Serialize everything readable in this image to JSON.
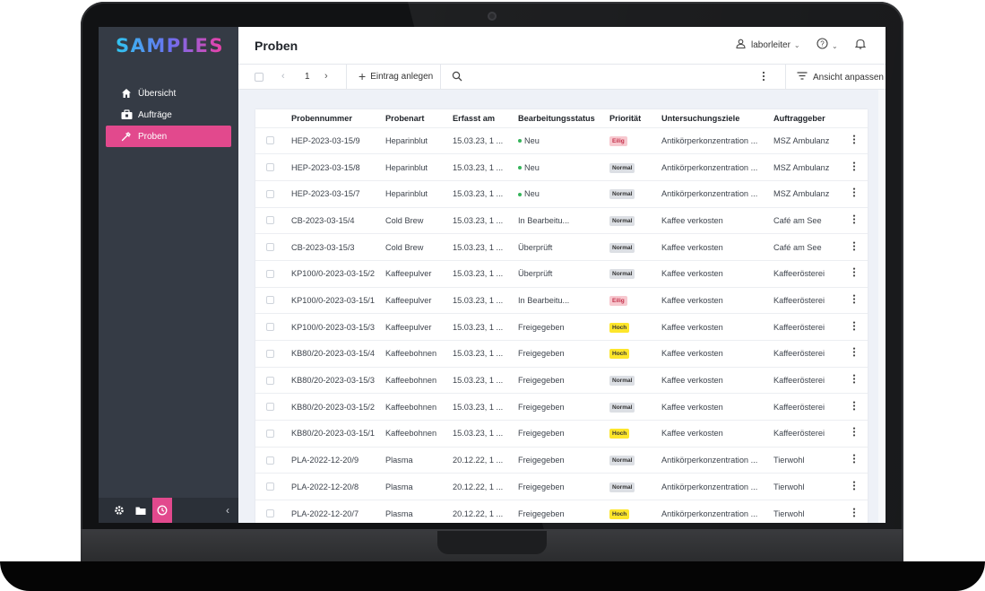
{
  "app": {
    "logo": "SAMPLES"
  },
  "colors": {
    "accent": "#e2498d",
    "sidebar": "#353b45",
    "neu": "#35b45a",
    "eilig_bg": "#f7c8cf",
    "eilig_fg": "#c4314b",
    "normal_bg": "#dcdfe4",
    "normal_fg": "#333333",
    "hoch_bg": "#fde62b",
    "hoch_fg": "#333333"
  },
  "sidebar": {
    "items": [
      {
        "label": "Übersicht",
        "icon": "home-icon",
        "active": false
      },
      {
        "label": "Aufträge",
        "icon": "briefcase-icon",
        "active": false
      },
      {
        "label": "Proben",
        "icon": "pipette-icon",
        "active": true
      }
    ],
    "footer": {
      "icons": [
        "gear-icon",
        "folder-icon",
        "clock-icon"
      ],
      "collapse": "‹"
    }
  },
  "header": {
    "title": "Proben",
    "user": "laborleiter",
    "caret": "⌄",
    "help": "?"
  },
  "toolbar": {
    "page": "1",
    "prev": "‹",
    "next": "›",
    "add_label": "Eintrag anlegen",
    "view_label": "Ansicht anpassen"
  },
  "table": {
    "columns": [
      "Probennummer",
      "Probenart",
      "Erfasst am",
      "Bearbeitungsstatus",
      "Priorität",
      "Untersuchungsziele",
      "Auftraggeber"
    ],
    "rows": [
      [
        "HEP-2023-03-15/9",
        "Heparinblut",
        "15.03.23, 1 ...",
        "Neu",
        "Eilig",
        "Antikörperkonzentration ...",
        "MSZ Ambulanz"
      ],
      [
        "HEP-2023-03-15/8",
        "Heparinblut",
        "15.03.23, 1 ...",
        "Neu",
        "Normal",
        "Antikörperkonzentration ...",
        "MSZ Ambulanz"
      ],
      [
        "HEP-2023-03-15/7",
        "Heparinblut",
        "15.03.23, 1 ...",
        "Neu",
        "Normal",
        "Antikörperkonzentration ...",
        "MSZ Ambulanz"
      ],
      [
        "CB-2023-03-15/4",
        "Cold Brew",
        "15.03.23, 1 ...",
        "In Bearbeitu...",
        "Normal",
        "Kaffee verkosten",
        "Café am See"
      ],
      [
        "CB-2023-03-15/3",
        "Cold Brew",
        "15.03.23, 1 ...",
        "Überprüft",
        "Normal",
        "Kaffee verkosten",
        "Café am See"
      ],
      [
        "KP100/0-2023-03-15/2",
        "Kaffeepulver",
        "15.03.23, 1 ...",
        "Überprüft",
        "Normal",
        "Kaffee verkosten",
        "Kaffeerösterei"
      ],
      [
        "KP100/0-2023-03-15/1",
        "Kaffeepulver",
        "15.03.23, 1 ...",
        "In Bearbeitu...",
        "Eilig",
        "Kaffee verkosten",
        "Kaffeerösterei"
      ],
      [
        "KP100/0-2023-03-15/3",
        "Kaffeepulver",
        "15.03.23, 1 ...",
        "Freigegeben",
        "Hoch",
        "Kaffee verkosten",
        "Kaffeerösterei"
      ],
      [
        "KB80/20-2023-03-15/4",
        "Kaffeebohnen",
        "15.03.23, 1 ...",
        "Freigegeben",
        "Hoch",
        "Kaffee verkosten",
        "Kaffeerösterei"
      ],
      [
        "KB80/20-2023-03-15/3",
        "Kaffeebohnen",
        "15.03.23, 1 ...",
        "Freigegeben",
        "Normal",
        "Kaffee verkosten",
        "Kaffeerösterei"
      ],
      [
        "KB80/20-2023-03-15/2",
        "Kaffeebohnen",
        "15.03.23, 1 ...",
        "Freigegeben",
        "Normal",
        "Kaffee verkosten",
        "Kaffeerösterei"
      ],
      [
        "KB80/20-2023-03-15/1",
        "Kaffeebohnen",
        "15.03.23, 1 ...",
        "Freigegeben",
        "Hoch",
        "Kaffee verkosten",
        "Kaffeerösterei"
      ],
      [
        "PLA-2022-12-20/9",
        "Plasma",
        "20.12.22, 1 ...",
        "Freigegeben",
        "Normal",
        "Antikörperkonzentration ...",
        "Tierwohl"
      ],
      [
        "PLA-2022-12-20/8",
        "Plasma",
        "20.12.22, 1 ...",
        "Freigegeben",
        "Normal",
        "Antikörperkonzentration ...",
        "Tierwohl"
      ],
      [
        "PLA-2022-12-20/7",
        "Plasma",
        "20.12.22, 1 ...",
        "Freigegeben",
        "Hoch",
        "Antikörperkonzentration ...",
        "Tierwohl"
      ]
    ]
  }
}
